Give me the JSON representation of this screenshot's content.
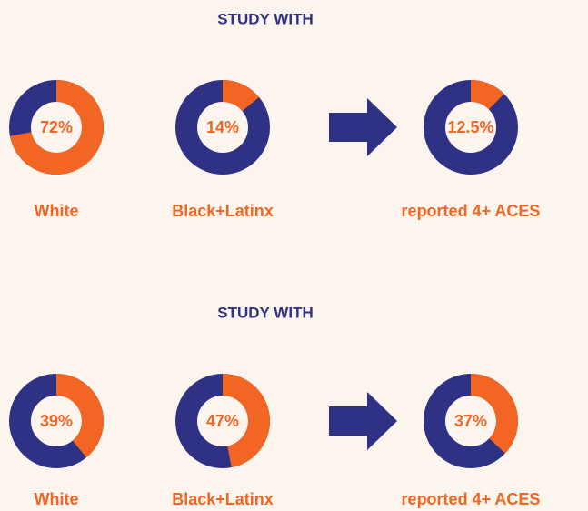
{
  "chart_data": [
    {
      "type": "donut",
      "title": "STUDY WITH",
      "categories": [
        "White",
        "Black+Latinx",
        "reported 4+ ACES"
      ],
      "values": [
        72,
        14,
        12.5
      ],
      "value_labels": [
        "72%",
        "14%",
        "12.5%"
      ],
      "color": "#f26522",
      "rest_color": "#2e3184"
    },
    {
      "type": "donut",
      "title": "STUDY WITH",
      "categories": [
        "White",
        "Black+Latinx",
        "reported 4+ ACES"
      ],
      "values": [
        39,
        47,
        37
      ],
      "value_labels": [
        "39%",
        "47%",
        "37%"
      ],
      "color": "#f26522",
      "rest_color": "#2e3184"
    }
  ]
}
